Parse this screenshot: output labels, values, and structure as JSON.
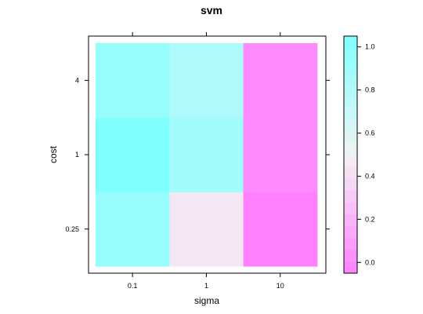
{
  "chart_data": {
    "type": "heatmap",
    "title": "svm",
    "xlabel": "sigma",
    "ylabel": "cost",
    "x_categories": [
      "0.1",
      "1",
      "10"
    ],
    "y_categories": [
      "0.25",
      "1",
      "4"
    ],
    "values": [
      [
        0.9,
        0.45,
        0.0
      ],
      [
        1.0,
        0.85,
        0.05
      ],
      [
        0.9,
        0.8,
        0.05
      ]
    ],
    "colorbar": {
      "range": [
        0,
        1
      ],
      "ticks": [
        "0.0",
        "0.2",
        "0.4",
        "0.6",
        "0.8",
        "1.0"
      ],
      "tick_values": [
        0,
        0.2,
        0.4,
        0.6,
        0.8,
        1.0
      ]
    },
    "colors": {
      "low": "#ff80ff",
      "mid": "#f2f2f2",
      "high": "#80ffff"
    }
  }
}
